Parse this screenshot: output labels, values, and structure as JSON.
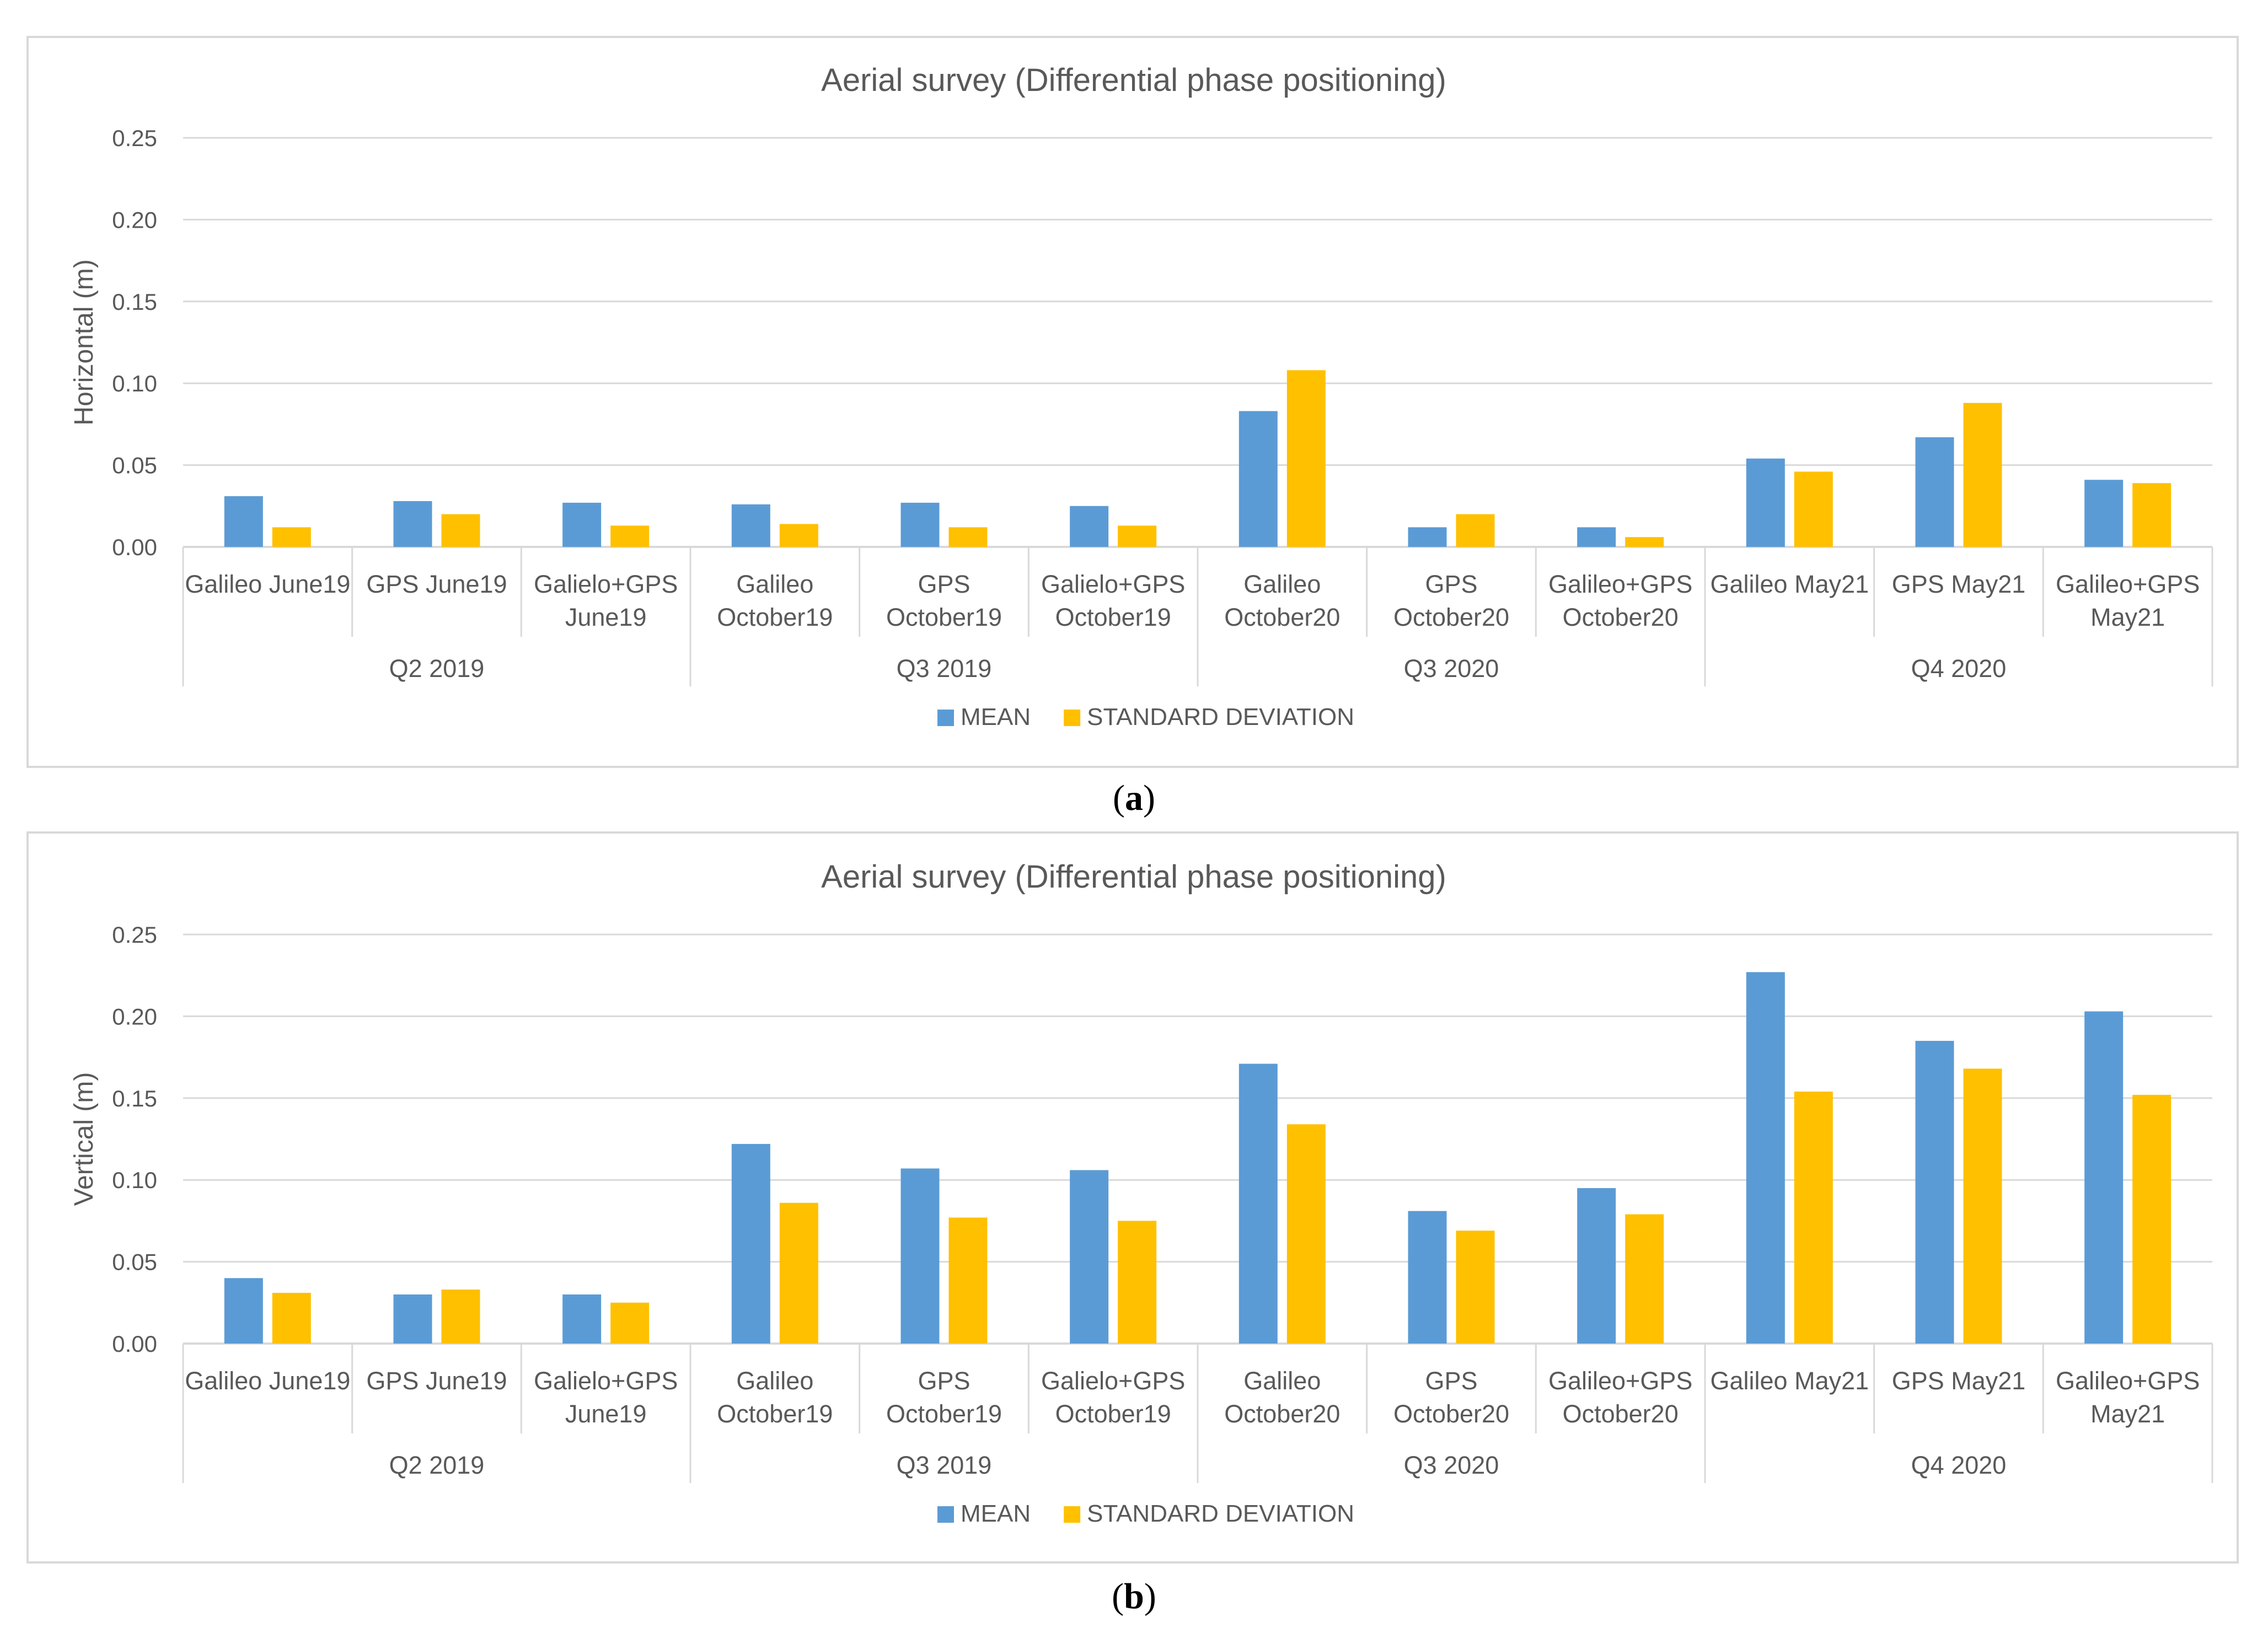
{
  "chart_data": [
    {
      "type": "bar",
      "title": "Aerial survey (Differential phase positioning)",
      "ylabel": "Horizontal (m)",
      "xlabel": "",
      "ylim": [
        0,
        0.25
      ],
      "yticks": [
        "0.00",
        "0.05",
        "0.10",
        "0.15",
        "0.20",
        "0.25"
      ],
      "grid": true,
      "legend": "bottom",
      "caption_letter": "a",
      "categories": [
        [
          "Galileo June19"
        ],
        [
          "GPS June19"
        ],
        [
          "Galielo+GPS",
          "June19"
        ],
        [
          "Galileo",
          "October19"
        ],
        [
          "GPS",
          "October19"
        ],
        [
          "Galielo+GPS",
          "October19"
        ],
        [
          "Galileo",
          "October20"
        ],
        [
          "GPS",
          "October20"
        ],
        [
          "Galileo+GPS",
          "October20"
        ],
        [
          "Galileo May21"
        ],
        [
          "GPS May21"
        ],
        [
          "Galileo+GPS",
          "May21"
        ]
      ],
      "groups": [
        {
          "label": "Q2 2019",
          "start": 0,
          "count": 3
        },
        {
          "label": "Q3 2019",
          "start": 3,
          "count": 3
        },
        {
          "label": "Q3 2020",
          "start": 6,
          "count": 3
        },
        {
          "label": "Q4 2020",
          "start": 9,
          "count": 3
        }
      ],
      "series": [
        {
          "name": "MEAN",
          "color": "#5b9bd5",
          "values": [
            0.031,
            0.028,
            0.027,
            0.026,
            0.027,
            0.025,
            0.083,
            0.012,
            0.012,
            0.054,
            0.067,
            0.041
          ]
        },
        {
          "name": "STANDARD DEVIATION",
          "color": "#ffc000",
          "values": [
            0.012,
            0.02,
            0.013,
            0.014,
            0.012,
            0.013,
            0.108,
            0.02,
            0.006,
            0.046,
            0.088,
            0.039
          ]
        }
      ]
    },
    {
      "type": "bar",
      "title": "Aerial survey (Differential phase positioning)",
      "ylabel": "Vertical (m)",
      "xlabel": "",
      "ylim": [
        0,
        0.25
      ],
      "yticks": [
        "0.00",
        "0.05",
        "0.10",
        "0.15",
        "0.20",
        "0.25"
      ],
      "grid": true,
      "legend": "bottom",
      "caption_letter": "b",
      "categories": [
        [
          "Galileo June19"
        ],
        [
          "GPS June19"
        ],
        [
          "Galielo+GPS",
          "June19"
        ],
        [
          "Galileo",
          "October19"
        ],
        [
          "GPS",
          "October19"
        ],
        [
          "Galielo+GPS",
          "October19"
        ],
        [
          "Galileo",
          "October20"
        ],
        [
          "GPS",
          "October20"
        ],
        [
          "Galileo+GPS",
          "October20"
        ],
        [
          "Galileo May21"
        ],
        [
          "GPS May21"
        ],
        [
          "Galileo+GPS",
          "May21"
        ]
      ],
      "groups": [
        {
          "label": "Q2 2019",
          "start": 0,
          "count": 3
        },
        {
          "label": "Q3 2019",
          "start": 3,
          "count": 3
        },
        {
          "label": "Q3 2020",
          "start": 6,
          "count": 3
        },
        {
          "label": "Q4 2020",
          "start": 9,
          "count": 3
        }
      ],
      "series": [
        {
          "name": "MEAN",
          "color": "#5b9bd5",
          "values": [
            0.04,
            0.03,
            0.03,
            0.122,
            0.107,
            0.106,
            0.171,
            0.081,
            0.095,
            0.227,
            0.185,
            0.203
          ]
        },
        {
          "name": "STANDARD DEVIATION",
          "color": "#ffc000",
          "values": [
            0.031,
            0.033,
            0.025,
            0.086,
            0.077,
            0.075,
            0.134,
            0.069,
            0.079,
            0.154,
            0.168,
            0.152
          ]
        }
      ]
    }
  ]
}
